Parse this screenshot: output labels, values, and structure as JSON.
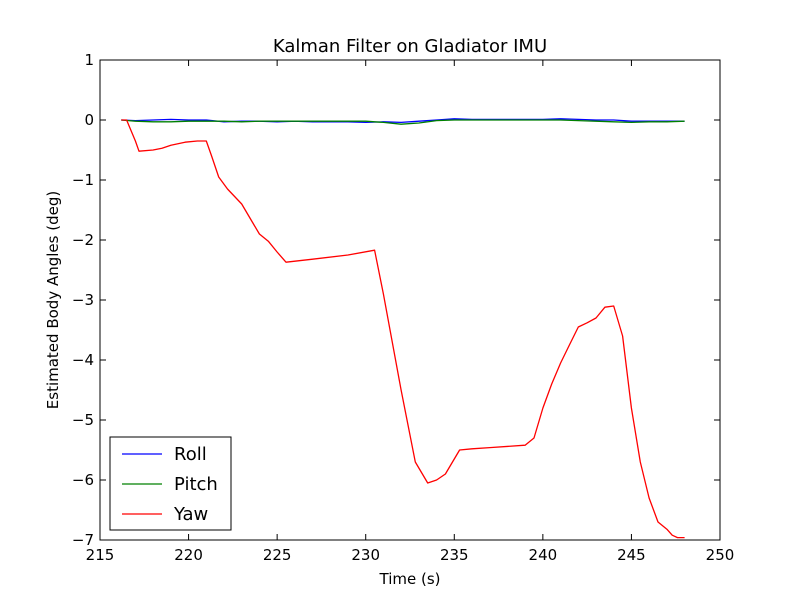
{
  "chart_data": {
    "type": "line",
    "title": "Kalman Filter on Gladiator IMU",
    "xlabel": "Time (s)",
    "ylabel": "Estimated Body Angles (deg)",
    "xlim": [
      215,
      250
    ],
    "ylim": [
      -7,
      1
    ],
    "x_ticks": [
      215,
      220,
      225,
      230,
      235,
      240,
      245,
      250
    ],
    "x_tick_labels": [
      "215",
      "220",
      "225",
      "230",
      "235",
      "240",
      "245",
      "250"
    ],
    "y_ticks": [
      1,
      0,
      -1,
      -2,
      -3,
      -4,
      -5,
      -6,
      -7
    ],
    "y_tick_labels": [
      "1",
      "0",
      "−1",
      "−2",
      "−3",
      "−4",
      "−5",
      "−6",
      "−7"
    ],
    "grid": false,
    "legend_position": "lower-left",
    "series": [
      {
        "name": "Roll",
        "color": "#0000ff",
        "x": [
          216.2,
          217,
          218,
          219,
          220,
          221,
          222,
          223,
          224,
          225,
          226,
          227,
          228,
          229,
          230,
          231,
          232,
          233,
          234,
          235,
          236,
          237,
          238,
          239,
          240,
          241,
          242,
          243,
          244,
          245,
          246,
          247,
          248
        ],
        "y": [
          0,
          -0.01,
          0.0,
          0.01,
          0.0,
          0.0,
          -0.03,
          -0.02,
          -0.02,
          -0.03,
          -0.02,
          -0.03,
          -0.03,
          -0.03,
          -0.04,
          -0.03,
          -0.04,
          -0.02,
          0.0,
          0.02,
          0.01,
          0.01,
          0.01,
          0.01,
          0.01,
          0.02,
          0.01,
          0.0,
          0.0,
          -0.02,
          -0.02,
          -0.02,
          -0.02
        ]
      },
      {
        "name": "Pitch",
        "color": "#008000",
        "x": [
          216.2,
          217,
          218,
          219,
          220,
          221,
          222,
          223,
          224,
          225,
          226,
          227,
          228,
          229,
          230,
          231,
          232,
          233,
          234,
          235,
          236,
          237,
          238,
          239,
          240,
          241,
          242,
          243,
          244,
          245,
          246,
          247,
          248
        ],
        "y": [
          0,
          -0.02,
          -0.03,
          -0.03,
          -0.02,
          -0.02,
          -0.02,
          -0.03,
          -0.02,
          -0.02,
          -0.02,
          -0.02,
          -0.02,
          -0.02,
          -0.02,
          -0.04,
          -0.07,
          -0.05,
          -0.01,
          0.0,
          0.0,
          0.0,
          0.0,
          0.0,
          0.0,
          0.0,
          -0.01,
          -0.02,
          -0.03,
          -0.04,
          -0.03,
          -0.03,
          -0.02
        ]
      },
      {
        "name": "Yaw",
        "color": "#ff0000",
        "x": [
          216.2,
          216.5,
          217.0,
          217.2,
          218.0,
          218.5,
          219.0,
          219.8,
          220.5,
          221.0,
          221.3,
          221.7,
          222.2,
          223.0,
          223.6,
          224.0,
          224.5,
          225.0,
          225.5,
          227.0,
          229.0,
          230.5,
          231.0,
          232.0,
          232.8,
          233.5,
          234.0,
          234.5,
          235.3,
          236.0,
          237.0,
          239.0,
          239.5,
          240.0,
          240.5,
          241.0,
          241.5,
          242.0,
          242.5,
          243.0,
          243.5,
          244.0,
          244.5,
          245.0,
          245.5,
          246.0,
          246.5,
          247.0,
          247.3,
          247.6,
          248.0
        ],
        "y": [
          0,
          0,
          -0.35,
          -0.52,
          -0.5,
          -0.47,
          -0.42,
          -0.37,
          -0.35,
          -0.35,
          -0.6,
          -0.95,
          -1.15,
          -1.4,
          -1.7,
          -1.9,
          -2.02,
          -2.2,
          -2.37,
          -2.32,
          -2.25,
          -2.17,
          -2.9,
          -4.5,
          -5.7,
          -6.05,
          -6.0,
          -5.9,
          -5.5,
          -5.48,
          -5.46,
          -5.42,
          -5.3,
          -4.8,
          -4.4,
          -4.05,
          -3.75,
          -3.45,
          -3.38,
          -3.3,
          -3.12,
          -3.1,
          -3.6,
          -4.8,
          -5.7,
          -6.3,
          -6.7,
          -6.82,
          -6.92,
          -6.96,
          -6.96
        ]
      }
    ]
  }
}
